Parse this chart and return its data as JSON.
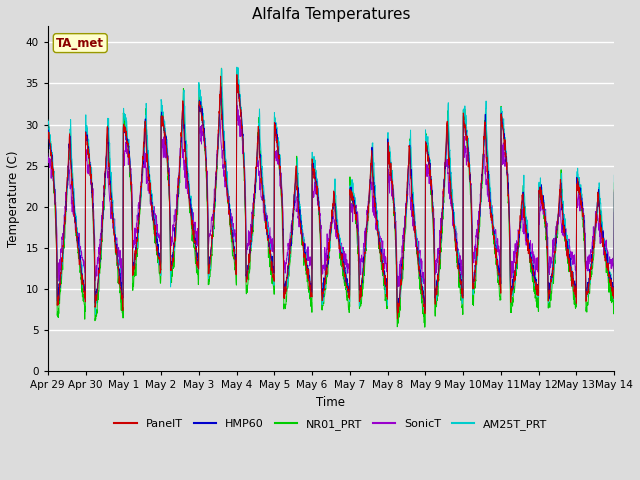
{
  "title": "Alfalfa Temperatures",
  "xlabel": "Time",
  "ylabel": "Temperature (C)",
  "ylim": [
    0,
    42
  ],
  "yticks": [
    0,
    5,
    10,
    15,
    20,
    25,
    30,
    35,
    40
  ],
  "background_color": "#dcdcdc",
  "annotation_text": "TA_met",
  "annotation_color": "#8b0000",
  "annotation_bg": "#ffffcc",
  "annotation_edge": "#999900",
  "series_colors": {
    "PanelT": "#cc0000",
    "HMP60": "#0000cc",
    "NR01_PRT": "#00cc00",
    "SonicT": "#9900cc",
    "AM25T_PRT": "#00cccc"
  },
  "legend_entries": [
    "PanelT",
    "HMP60",
    "NR01_PRT",
    "SonicT",
    "AM25T_PRT"
  ],
  "xtick_labels": [
    "Apr 29",
    "Apr 30",
    "May 1",
    "May 2",
    "May 3",
    "May 4",
    "May 5",
    "May 6",
    "May 7",
    "May 8",
    "May 9",
    "May 10",
    "May 11",
    "May 12",
    "May 13",
    "May 14"
  ],
  "num_days": 16,
  "points_per_day": 144
}
